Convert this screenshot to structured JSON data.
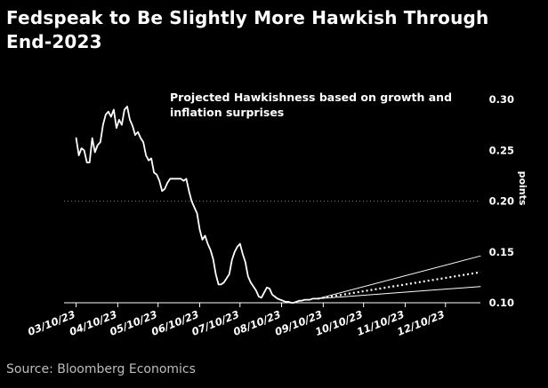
{
  "title": "Fedspeak to Be Slightly More Hawkish Through End-2023",
  "source": "Source: Bloomberg Economics",
  "chart_data": {
    "type": "line",
    "annotation": [
      "Projected Hawkishness based on growth and",
      "inflation surprises"
    ],
    "ylabel": "points",
    "ylim": [
      0.1,
      0.3
    ],
    "yticks": [
      "0.30",
      "0.25",
      "0.20",
      "0.15",
      "0.10"
    ],
    "ytick_values": [
      0.3,
      0.25,
      0.2,
      0.15,
      0.1
    ],
    "grid_dotted_at": 0.2,
    "xlim": [
      "2023-03-01",
      "2024-01-05"
    ],
    "xticks": [
      "03/10/23",
      "04/10/23",
      "05/10/23",
      "06/10/23",
      "07/10/23",
      "08/10/23",
      "09/10/23",
      "10/10/23",
      "11/10/23",
      "12/10/23"
    ],
    "xtick_dates": [
      "2023-03-10",
      "2023-04-10",
      "2023-05-10",
      "2023-06-10",
      "2023-07-10",
      "2023-08-10",
      "2023-09-10",
      "2023-10-10",
      "2023-11-10",
      "2023-12-10"
    ],
    "series": [
      {
        "style": "solid",
        "x": [
          "2023-03-10",
          "2023-03-12",
          "2023-03-14",
          "2023-03-16",
          "2023-03-18",
          "2023-03-20",
          "2023-03-22",
          "2023-03-24",
          "2023-03-26",
          "2023-03-28",
          "2023-03-30",
          "2023-04-01",
          "2023-04-03",
          "2023-04-05",
          "2023-04-07",
          "2023-04-09",
          "2023-04-11",
          "2023-04-13",
          "2023-04-15",
          "2023-04-17",
          "2023-04-19",
          "2023-04-21",
          "2023-04-23",
          "2023-04-25",
          "2023-04-27",
          "2023-04-29",
          "2023-05-01",
          "2023-05-03",
          "2023-05-05",
          "2023-05-07",
          "2023-05-09",
          "2023-05-11",
          "2023-05-13",
          "2023-05-15",
          "2023-05-17",
          "2023-05-19",
          "2023-05-21",
          "2023-05-23",
          "2023-05-25",
          "2023-05-27",
          "2023-05-29",
          "2023-05-31",
          "2023-06-02",
          "2023-06-04",
          "2023-06-06",
          "2023-06-08",
          "2023-06-10",
          "2023-06-12",
          "2023-06-14",
          "2023-06-16",
          "2023-06-18",
          "2023-06-20",
          "2023-06-22",
          "2023-06-24",
          "2023-06-26",
          "2023-06-28",
          "2023-06-30",
          "2023-07-02",
          "2023-07-04",
          "2023-07-06",
          "2023-07-08",
          "2023-07-10",
          "2023-07-12",
          "2023-07-14",
          "2023-07-16",
          "2023-07-18",
          "2023-07-20",
          "2023-07-22",
          "2023-07-24",
          "2023-07-26",
          "2023-07-28",
          "2023-07-30",
          "2023-08-01",
          "2023-08-03",
          "2023-08-05",
          "2023-08-07",
          "2023-08-09",
          "2023-08-11",
          "2023-08-13",
          "2023-08-15",
          "2023-08-17",
          "2023-08-19",
          "2023-08-21",
          "2023-08-23",
          "2023-08-25",
          "2023-08-27",
          "2023-08-29",
          "2023-08-31",
          "2023-09-02",
          "2023-09-04",
          "2023-09-06"
        ],
        "values": [
          0.262,
          0.245,
          0.252,
          0.25,
          0.238,
          0.238,
          0.262,
          0.248,
          0.255,
          0.258,
          0.275,
          0.285,
          0.288,
          0.283,
          0.29,
          0.272,
          0.28,
          0.275,
          0.29,
          0.293,
          0.28,
          0.274,
          0.265,
          0.268,
          0.262,
          0.258,
          0.245,
          0.24,
          0.242,
          0.228,
          0.226,
          0.22,
          0.21,
          0.212,
          0.218,
          0.222,
          0.222,
          0.222,
          0.222,
          0.222,
          0.22,
          0.222,
          0.21,
          0.2,
          0.194,
          0.188,
          0.172,
          0.162,
          0.166,
          0.158,
          0.152,
          0.143,
          0.128,
          0.118,
          0.118,
          0.12,
          0.124,
          0.128,
          0.142,
          0.15,
          0.155,
          0.158,
          0.148,
          0.14,
          0.126,
          0.12,
          0.116,
          0.112,
          0.106,
          0.105,
          0.11,
          0.115,
          0.114,
          0.108,
          0.106,
          0.104,
          0.103,
          0.102,
          0.101,
          0.101,
          0.1,
          0.1,
          0.101,
          0.102,
          0.102,
          0.103,
          0.103,
          0.103,
          0.104,
          0.104,
          0.104
        ]
      },
      {
        "style": "solid-thin",
        "x": [
          "2023-09-06",
          "2024-01-05"
        ],
        "values": [
          0.104,
          0.146
        ]
      },
      {
        "style": "dotted",
        "x": [
          "2023-09-06",
          "2024-01-05"
        ],
        "values": [
          0.104,
          0.13
        ]
      },
      {
        "style": "solid-thin",
        "x": [
          "2023-09-06",
          "2024-01-05"
        ],
        "values": [
          0.104,
          0.116
        ]
      }
    ]
  }
}
